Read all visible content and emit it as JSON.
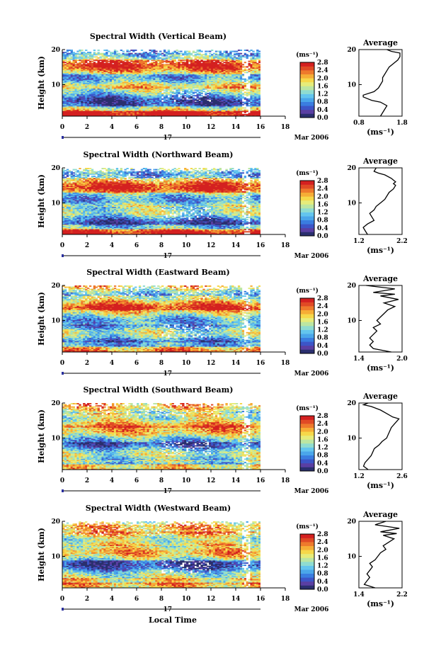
{
  "figure": {
    "xlabel": "Local Time",
    "date_label": "Mar 2006",
    "day_label": "17",
    "ylabel": "Height (km)",
    "colorbar_unit": "(ms⁻¹)",
    "profile_title": "Average",
    "profile_xlabel": "(ms⁻¹)"
  },
  "colorscale": [
    "#2a2f6e",
    "#5a3fa3",
    "#3c55c8",
    "#3a7de0",
    "#4aa6ea",
    "#63c5ee",
    "#8fdcd0",
    "#bce6a2",
    "#e6ec7a",
    "#f6d84a",
    "#f6ad36",
    "#ee7a2c",
    "#e04a25",
    "#d42020"
  ],
  "chart_data": [
    {
      "type": "heatmap",
      "title": "Spectral Width (Vertical Beam)",
      "x_ticks": [
        "0",
        "2",
        "4",
        "6",
        "8",
        "10",
        "12",
        "14",
        "16",
        "18"
      ],
      "xlim": [
        0,
        18
      ],
      "y_ticks": [
        "20",
        "10"
      ],
      "ylim": [
        1,
        20
      ],
      "colorbar_ticks": [
        "2.8",
        "2.4",
        "2.0",
        "1.6",
        "1.2",
        "0.8",
        "0.4",
        "0.0"
      ],
      "clim": [
        0.0,
        2.8
      ],
      "data_end_hour": 16,
      "profile": {
        "xticks": [
          "0.8",
          "1.8"
        ],
        "xlim": [
          0.8,
          1.8
        ],
        "x": [
          1.3,
          1.35,
          1.4,
          1.45,
          1.3,
          1.1,
          1.0,
          0.9,
          0.9,
          1.15,
          1.25,
          1.3,
          1.35,
          1.35,
          1.4,
          1.45,
          1.5,
          1.6,
          1.7,
          1.75,
          1.75,
          1.55,
          1.45
        ],
        "y": [
          1,
          2,
          3,
          4,
          5,
          5.5,
          6,
          6.5,
          7,
          8,
          9,
          10,
          11,
          12,
          13,
          14,
          15,
          16,
          17,
          18,
          19,
          19.5,
          20
        ]
      }
    },
    {
      "type": "heatmap",
      "title": "Spectral Width (Northward Beam)",
      "x_ticks": [
        "0",
        "2",
        "4",
        "6",
        "8",
        "10",
        "12",
        "14",
        "16",
        "18"
      ],
      "xlim": [
        0,
        18
      ],
      "y_ticks": [
        "20",
        "10"
      ],
      "ylim": [
        1,
        20
      ],
      "colorbar_ticks": [
        "2.8",
        "2.4",
        "2.0",
        "1.6",
        "1.2",
        "0.8",
        "0.4",
        "0.0"
      ],
      "clim": [
        0.0,
        2.8
      ],
      "data_end_hour": 16,
      "profile": {
        "xticks": [
          "1.2",
          "2.2"
        ],
        "xlim": [
          1.2,
          2.2
        ],
        "x": [
          1.4,
          1.35,
          1.3,
          1.4,
          1.55,
          1.5,
          1.45,
          1.55,
          1.6,
          1.7,
          1.8,
          1.85,
          1.9,
          2.0,
          2.05,
          2.0,
          2.05,
          1.95,
          1.8,
          1.65,
          1.55,
          1.6
        ],
        "y": [
          1,
          2,
          3,
          4,
          5,
          6,
          7,
          8,
          9,
          10,
          11,
          12,
          13,
          14,
          15,
          15.5,
          16,
          17,
          18,
          18.5,
          19,
          20
        ]
      }
    },
    {
      "type": "heatmap",
      "title": "Spectral Width (Eastward Beam)",
      "x_ticks": [
        "0",
        "2",
        "4",
        "6",
        "8",
        "10",
        "12",
        "14",
        "16",
        "18"
      ],
      "xlim": [
        0,
        18
      ],
      "y_ticks": [
        "20",
        "10"
      ],
      "ylim": [
        1,
        20
      ],
      "colorbar_ticks": [
        "2.8",
        "2.4",
        "2.0",
        "1.6",
        "1.2",
        "0.8",
        "0.4",
        "0.0"
      ],
      "clim": [
        0.0,
        2.8
      ],
      "data_end_hour": 16,
      "profile": {
        "xticks": [
          "1.4",
          "2.0"
        ],
        "xlim": [
          1.4,
          2.0
        ],
        "x": [
          1.85,
          1.6,
          1.55,
          1.6,
          1.55,
          1.6,
          1.65,
          1.6,
          1.7,
          1.65,
          1.7,
          1.75,
          1.8,
          1.9,
          1.75,
          1.95,
          1.7,
          1.9,
          1.6,
          1.9,
          1.5
        ],
        "y": [
          1,
          2,
          3,
          4,
          5,
          6,
          7,
          8,
          9,
          10,
          11,
          12,
          13,
          14,
          15,
          16,
          17,
          17.5,
          18,
          19,
          20
        ]
      }
    },
    {
      "type": "heatmap",
      "title": "Spectral Width (Southward Beam)",
      "x_ticks": [
        "0",
        "2",
        "4",
        "6",
        "8",
        "10",
        "12",
        "14",
        "16",
        "18"
      ],
      "xlim": [
        0,
        18
      ],
      "y_ticks": [
        "20",
        "10"
      ],
      "ylim": [
        1,
        20
      ],
      "colorbar_ticks": [
        "2.8",
        "2.4",
        "2.0",
        "1.6",
        "1.2",
        "0.8",
        "0.4",
        "0.0"
      ],
      "clim": [
        0.0,
        2.8
      ],
      "data_end_hour": 16,
      "profile": {
        "xticks": [
          "1.2",
          "2.6"
        ],
        "xlim": [
          1.2,
          2.6
        ],
        "x": [
          1.5,
          1.35,
          1.4,
          1.5,
          1.6,
          1.65,
          1.7,
          1.85,
          1.95,
          2.1,
          2.15,
          2.2,
          2.25,
          2.35,
          2.45,
          2.5,
          2.3,
          2.1,
          1.9,
          1.6,
          1.35,
          1.5
        ],
        "y": [
          1,
          2,
          3,
          4,
          5,
          6,
          7,
          8,
          9,
          10,
          11,
          12,
          13,
          14,
          15,
          15.5,
          16,
          17,
          18,
          19,
          19.5,
          20
        ]
      }
    },
    {
      "type": "heatmap",
      "title": "Spectral Width (Westward Beam)",
      "x_ticks": [
        "0",
        "2",
        "4",
        "6",
        "8",
        "10",
        "12",
        "14",
        "16",
        "18"
      ],
      "xlim": [
        0,
        18
      ],
      "y_ticks": [
        "20",
        "10"
      ],
      "ylim": [
        1,
        20
      ],
      "colorbar_ticks": [
        "2.8",
        "2.4",
        "2.0",
        "1.6",
        "1.2",
        "0.8",
        "0.4",
        "0.0"
      ],
      "clim": [
        0.0,
        2.8
      ],
      "data_end_hour": 16,
      "profile": {
        "xticks": [
          "1.4",
          "2.2"
        ],
        "xlim": [
          1.4,
          2.2
        ],
        "x": [
          1.7,
          1.5,
          1.55,
          1.6,
          1.55,
          1.6,
          1.65,
          1.6,
          1.7,
          1.75,
          1.8,
          1.9,
          1.85,
          1.95,
          2.05,
          1.85,
          2.1,
          1.8,
          2.15,
          1.7,
          1.9
        ],
        "y": [
          1,
          2,
          3,
          4,
          5,
          6,
          7,
          8,
          9,
          10,
          11,
          12,
          13,
          14,
          15,
          16,
          16.5,
          17,
          18,
          19,
          20
        ]
      }
    }
  ]
}
